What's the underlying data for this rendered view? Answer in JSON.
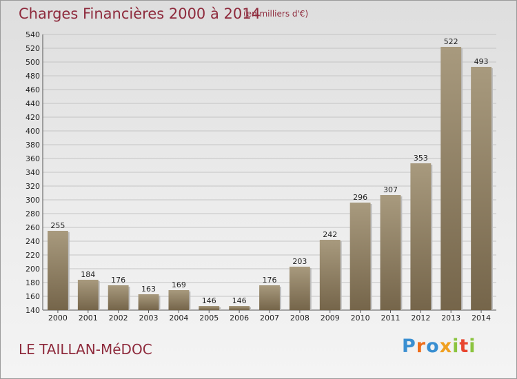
{
  "header": {
    "title": "Charges Financières 2000 à 2014",
    "subtitle": "(en milliers d'€)"
  },
  "footer": {
    "city": "LE TAILLAN-MéDOC",
    "logo": [
      "P",
      "r",
      "o",
      "x",
      "i",
      "t",
      "i"
    ]
  },
  "colors": {
    "title": "#8e2a3c",
    "bar_top": "#a89a7e",
    "bar_bottom": "#75654a",
    "logo": [
      "#3a8fd1",
      "#ef6d1a",
      "#3a8fd1",
      "#f0a020",
      "#8bc43f",
      "#e8452f",
      "#8bc43f"
    ]
  },
  "chart_data": {
    "type": "bar",
    "title": "Charges Financières 2000 à 2014",
    "subtitle": "(en milliers d'€)",
    "categories": [
      "2000",
      "2001",
      "2002",
      "2003",
      "2004",
      "2005",
      "2006",
      "2007",
      "2008",
      "2009",
      "2010",
      "2011",
      "2012",
      "2013",
      "2014"
    ],
    "values": [
      255,
      184,
      176,
      163,
      169,
      146,
      146,
      176,
      203,
      242,
      296,
      307,
      353,
      522,
      493
    ],
    "ylim": [
      140,
      540
    ],
    "ytick_step": 20,
    "grid": true,
    "xlabel": "",
    "ylabel": ""
  }
}
